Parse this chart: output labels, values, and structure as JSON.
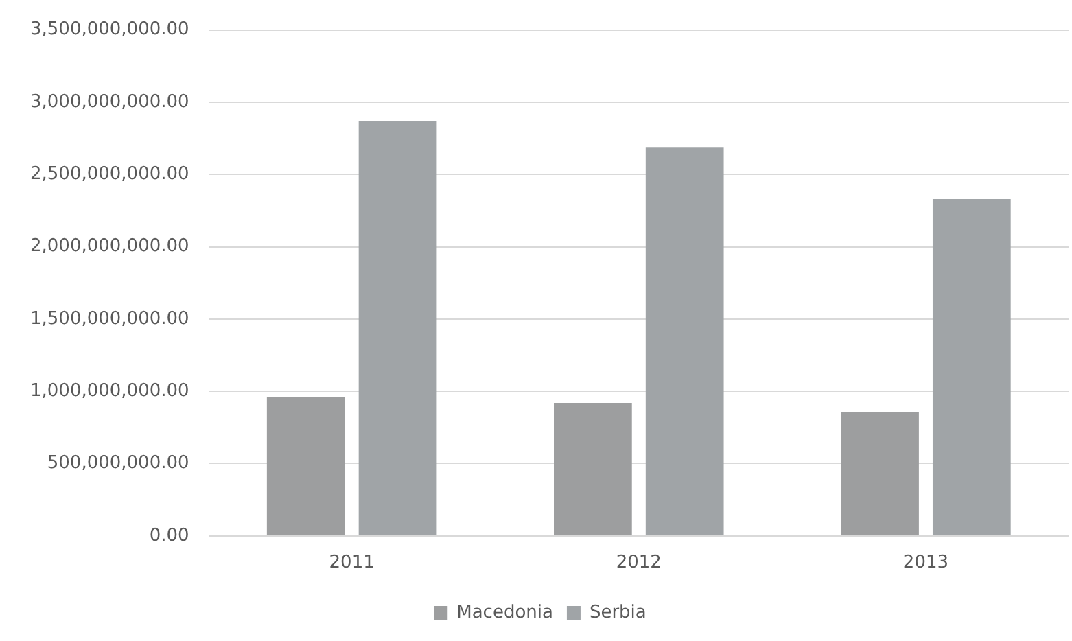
{
  "chart_data": {
    "type": "bar",
    "categories": [
      "2011",
      "2012",
      "2013"
    ],
    "series": [
      {
        "name": "Macedonia",
        "color": "#9d9e9f",
        "values": [
          960000000,
          920000000,
          855000000
        ]
      },
      {
        "name": "Serbia",
        "color": "#a0a4a7",
        "values": [
          2870000000,
          2690000000,
          2330000000
        ]
      }
    ],
    "ylim": [
      0,
      3500000000
    ],
    "yticks": [
      {
        "value": 0,
        "label": "0.00"
      },
      {
        "value": 500000000,
        "label": "500,000,000.00"
      },
      {
        "value": 1000000000,
        "label": "1,000,000,000.00"
      },
      {
        "value": 1500000000,
        "label": "1,500,000,000.00"
      },
      {
        "value": 2000000000,
        "label": "2,000,000,000.00"
      },
      {
        "value": 2500000000,
        "label": "2,500,000,000.00"
      },
      {
        "value": 3000000000,
        "label": "3,000,000,000.00"
      },
      {
        "value": 3500000000,
        "label": "3,500,000,000.00"
      }
    ],
    "grid": "y",
    "legend": "bottom"
  }
}
